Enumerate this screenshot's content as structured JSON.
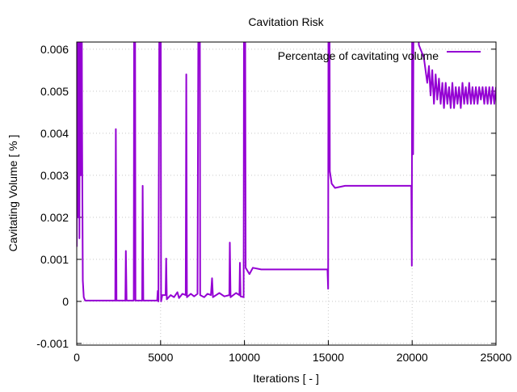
{
  "chart_data": {
    "type": "line",
    "title": "Cavitation Risk",
    "xlabel": "Iterations [ - ]",
    "ylabel": "Cavitating Volume [ % ]",
    "xlim": [
      0,
      25000
    ],
    "ylim": [
      -0.00104,
      0.00617
    ],
    "xticks": [
      0,
      5000,
      10000,
      15000,
      20000,
      25000
    ],
    "xtick_labels": [
      "0",
      "5000",
      "10000",
      "15000",
      "20000",
      "25000"
    ],
    "yticks": [
      -0.001,
      0,
      0.001,
      0.002,
      0.003,
      0.004,
      0.005,
      0.006
    ],
    "ytick_labels": [
      "-0.001",
      "0",
      "0.001",
      "0.002",
      "0.003",
      "0.004",
      "0.005",
      "0.006"
    ],
    "grid": true,
    "legend_position": "top-right",
    "series": [
      {
        "name": "Percentage of cavitating volume",
        "color": "#9400d3",
        "points": [
          [
            0,
            0.0013
          ],
          [
            40,
            0.01
          ],
          [
            80,
            0.002
          ],
          [
            120,
            0.01
          ],
          [
            160,
            0.0015
          ],
          [
            200,
            0.01
          ],
          [
            240,
            0.003
          ],
          [
            280,
            0.01
          ],
          [
            320,
            0.0041
          ],
          [
            360,
            0.0005
          ],
          [
            420,
            0.0001
          ],
          [
            500,
            2e-05
          ],
          [
            2300,
            2e-05
          ],
          [
            2330,
            0.0041
          ],
          [
            2370,
            2e-05
          ],
          [
            2900,
            2e-05
          ],
          [
            2930,
            0.0012
          ],
          [
            2970,
            2e-05
          ],
          [
            3400,
            2e-05
          ],
          [
            3430,
            0.01
          ],
          [
            3470,
            0.01
          ],
          [
            3500,
            2e-05
          ],
          [
            3900,
            2e-05
          ],
          [
            3930,
            0.00275
          ],
          [
            3970,
            2e-05
          ],
          [
            4800,
            2e-05
          ],
          [
            4830,
            0.00025
          ],
          [
            4870,
            0.0
          ],
          [
            4950,
            0.01
          ],
          [
            5000,
            0.01
          ],
          [
            5030,
            0.0
          ],
          [
            5100,
            0.00015
          ],
          [
            5300,
            0.00015
          ],
          [
            5330,
            0.00102
          ],
          [
            5370,
            5e-05
          ],
          [
            5600,
            0.00015
          ],
          [
            5800,
            0.0001
          ],
          [
            6000,
            0.00022
          ],
          [
            6100,
            8e-05
          ],
          [
            6300,
            0.00018
          ],
          [
            6500,
            0.00015
          ],
          [
            6530,
            0.0054
          ],
          [
            6570,
            0.0001
          ],
          [
            6800,
            0.00018
          ],
          [
            7000,
            0.00012
          ],
          [
            7200,
            0.00018
          ],
          [
            7280,
            0.01
          ],
          [
            7330,
            0.01
          ],
          [
            7360,
            0.00015
          ],
          [
            7600,
            0.0001
          ],
          [
            7800,
            0.00018
          ],
          [
            8000,
            0.00015
          ],
          [
            8070,
            0.00055
          ],
          [
            8120,
            0.0001
          ],
          [
            8500,
            0.0002
          ],
          [
            8800,
            0.00012
          ],
          [
            9100,
            0.00015
          ],
          [
            9130,
            0.0014
          ],
          [
            9170,
            0.0001
          ],
          [
            9500,
            0.0002
          ],
          [
            9700,
            0.00015
          ],
          [
            9730,
            0.00092
          ],
          [
            9770,
            0.00012
          ],
          [
            9950,
            0.0001
          ],
          [
            9980,
            0.01
          ],
          [
            10030,
            0.01
          ],
          [
            10070,
            0.0008
          ],
          [
            10300,
            0.00065
          ],
          [
            10500,
            0.0008
          ],
          [
            11000,
            0.00076
          ],
          [
            14950,
            0.00076
          ],
          [
            14990,
            0.0003
          ],
          [
            15020,
            0.01
          ],
          [
            15060,
            0.01
          ],
          [
            15090,
            0.0031
          ],
          [
            15200,
            0.0028
          ],
          [
            15400,
            0.0027
          ],
          [
            16000,
            0.00275
          ],
          [
            19950,
            0.00275
          ],
          [
            19980,
            0.00085
          ],
          [
            20010,
            0.01
          ],
          [
            20060,
            0.0035
          ],
          [
            20100,
            0.01
          ],
          [
            20400,
            0.0061
          ],
          [
            20700,
            0.0058
          ],
          [
            20900,
            0.0052
          ],
          [
            21000,
            0.0056
          ],
          [
            21100,
            0.0049
          ],
          [
            21200,
            0.0055
          ],
          [
            21300,
            0.0047
          ],
          [
            21400,
            0.0054
          ],
          [
            21500,
            0.0048
          ],
          [
            21600,
            0.0053
          ],
          [
            21700,
            0.0047
          ],
          [
            21800,
            0.0052
          ],
          [
            21900,
            0.0046
          ],
          [
            22000,
            0.0052
          ],
          [
            22100,
            0.0047
          ],
          [
            22200,
            0.0051
          ],
          [
            22300,
            0.0046
          ],
          [
            22400,
            0.0052
          ],
          [
            22500,
            0.0046
          ],
          [
            22600,
            0.0051
          ],
          [
            22700,
            0.0047
          ],
          [
            22800,
            0.0051
          ],
          [
            22900,
            0.0046
          ],
          [
            23000,
            0.0052
          ],
          [
            23100,
            0.0047
          ],
          [
            23200,
            0.0051
          ],
          [
            23300,
            0.0047
          ],
          [
            23400,
            0.0052
          ],
          [
            23500,
            0.0047
          ],
          [
            23600,
            0.0051
          ],
          [
            23700,
            0.0047
          ],
          [
            23800,
            0.0051
          ],
          [
            23900,
            0.0047
          ],
          [
            24000,
            0.0051
          ],
          [
            24100,
            0.0048
          ],
          [
            24200,
            0.0051
          ],
          [
            24300,
            0.0047
          ],
          [
            24400,
            0.0051
          ],
          [
            24500,
            0.0047
          ],
          [
            24600,
            0.0051
          ],
          [
            24700,
            0.0047
          ],
          [
            24800,
            0.0051
          ],
          [
            24900,
            0.0047
          ],
          [
            25000,
            0.0051
          ]
        ]
      }
    ]
  }
}
